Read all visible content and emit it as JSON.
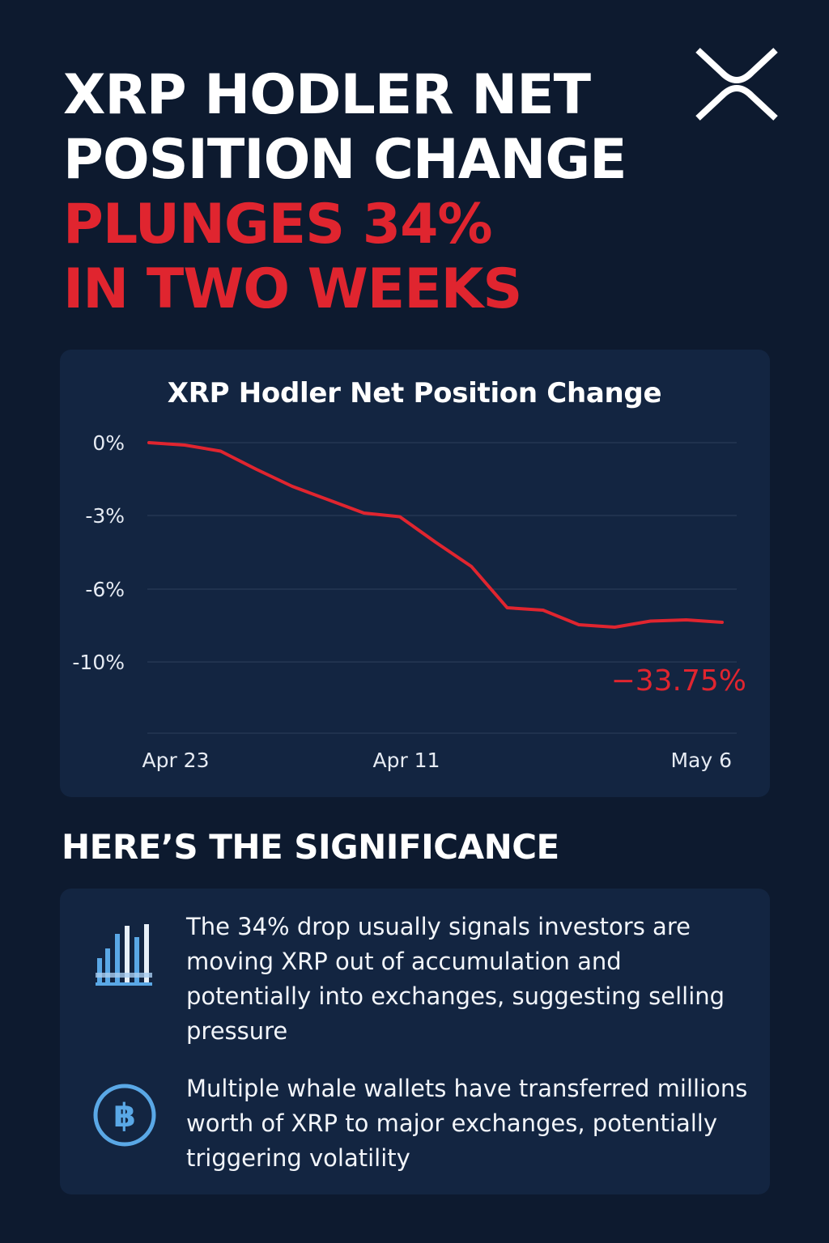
{
  "headline": {
    "line1": "XRP HODLER NET",
    "line2": "POSITION CHANGE",
    "line3": "PLUNGES 34%",
    "line4": "IN TWO WEEKS"
  },
  "logo": {
    "icon": "xrp-logo-icon"
  },
  "colors": {
    "background": "#0d1a2f",
    "card": "#132541",
    "accent_red": "#e0252f",
    "icon_blue": "#5aa8e6",
    "grid": "#2d3f5c"
  },
  "chart_data": {
    "type": "line",
    "title": "XRP Hodler Net Position Change",
    "xlabel": "",
    "ylabel": "",
    "y_ticks": [
      "0%",
      "-3%",
      "-6%",
      "-10%"
    ],
    "x_ticks": [
      "Apr 23",
      "Apr 11",
      "May 6"
    ],
    "ylim": [
      -12,
      0
    ],
    "grid": true,
    "series": [
      {
        "color": "#e0252f",
        "values": [
          0,
          -0.1,
          -0.35,
          -1.1,
          -1.8,
          -2.35,
          -2.9,
          -3.05,
          -4.1,
          -5.1,
          -6.8,
          -6.9,
          -7.5,
          -7.6,
          -7.35,
          -7.3,
          -7.4
        ]
      }
    ],
    "annotation": "−33.75%"
  },
  "significance": {
    "heading": "HERE’S THE SIGNIFICANCE",
    "items": [
      {
        "icon": "bar-chart-icon",
        "text": "The 34% drop usually signals investors are moving XRP out of accumulation and potentially into exchanges, suggesting selling pressure"
      },
      {
        "icon": "bitcoin-icon",
        "text": "Multiple whale wallets have transferred millions worth of XRP to major exchanges, potentially triggering volatility"
      }
    ]
  }
}
